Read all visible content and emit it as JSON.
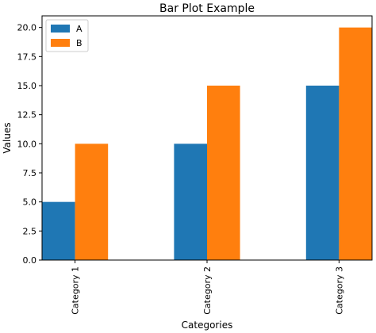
{
  "chart_data": {
    "type": "bar",
    "title": "Bar Plot Example",
    "xlabel": "Categories",
    "ylabel": "Values",
    "categories": [
      "Category 1",
      "Category 2",
      "Category 3"
    ],
    "series": [
      {
        "name": "A",
        "color": "#1f77b4",
        "values": [
          5,
          10,
          15
        ]
      },
      {
        "name": "B",
        "color": "#ff7f0e",
        "values": [
          10,
          15,
          20
        ]
      }
    ],
    "ylim": [
      0,
      21
    ],
    "yticks": [
      "0.0",
      "2.5",
      "5.0",
      "7.5",
      "10.0",
      "12.5",
      "15.0",
      "17.5",
      "20.0"
    ],
    "grid": false,
    "legend_position": "upper left"
  }
}
